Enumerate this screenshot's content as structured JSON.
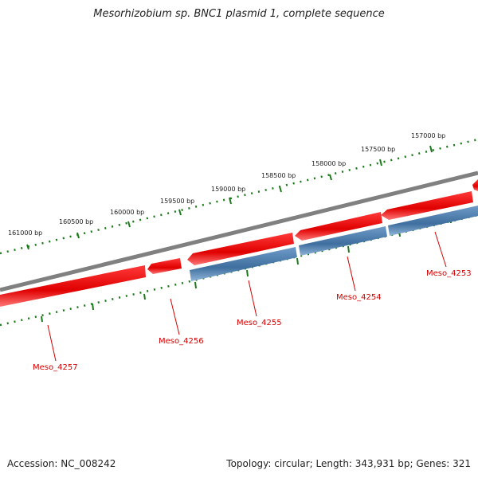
{
  "title": "Mesorhizobium sp. BNC1 plasmid 1, complete sequence",
  "footer": {
    "accession": "Accession: NC_008242",
    "topology": "Topology: circular; Length: 343,931 bp; Genes: 321"
  },
  "ruler_labels": [
    "161000 bp",
    "160500 bp",
    "160000 bp",
    "159500 bp",
    "159000 bp",
    "158500 bp",
    "158000 bp",
    "157500 bp",
    "157000 bp"
  ],
  "genes": [
    {
      "name": "Meso_4257",
      "strand": "forward",
      "color": "#ee0000"
    },
    {
      "name": "Meso_4256",
      "strand": "forward",
      "color": "#ee0000"
    },
    {
      "name": "Meso_4255",
      "strand": "forward",
      "color": "#ee0000"
    },
    {
      "name": "Meso_4254",
      "strand": "forward",
      "color": "#ee0000"
    },
    {
      "name": "Meso_4253",
      "strand": "forward",
      "color": "#ee0000"
    }
  ],
  "colors": {
    "backbone": "#808080",
    "forward_gene": "#ee0000",
    "reverse_gene": "#4f7fb0",
    "ruler": "#1a7a1a",
    "gene_label": "#d40000"
  }
}
